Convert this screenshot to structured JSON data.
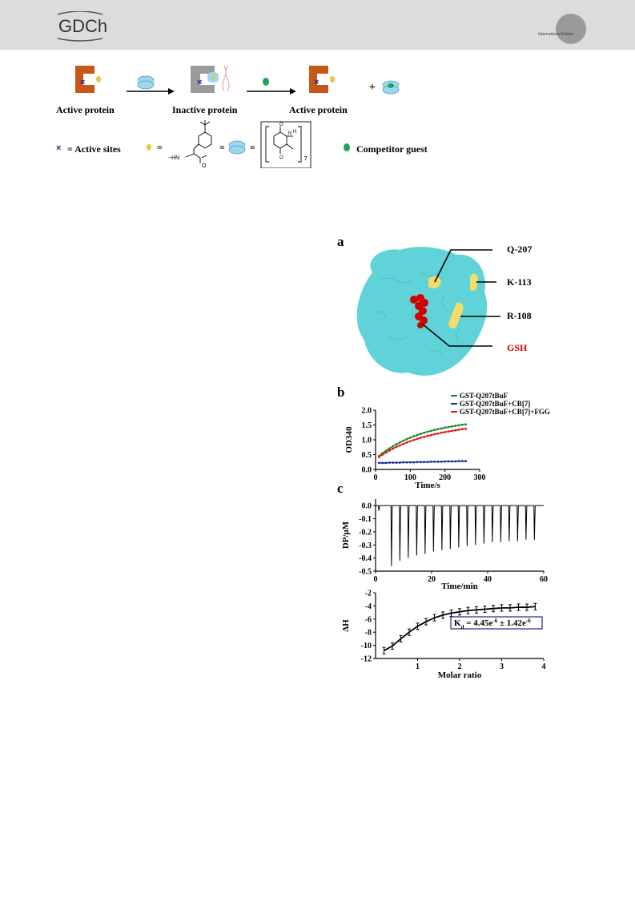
{
  "header": {
    "logo_text": "GDCh",
    "edition_text": "International Edition",
    "band_color": "#dcdcdc"
  },
  "scheme": {
    "labels": {
      "active_left": "Active protein",
      "inactive": "Inactive protein",
      "active_right": "Active protein",
      "plus": "+"
    },
    "legend": {
      "active_sites": "= Active sites",
      "eq1": "=",
      "eq2": "=",
      "eq3": "=",
      "competitor": "Competitor guest",
      "subscript": "7"
    },
    "colors": {
      "protein_active": "#c8571a",
      "protein_inactive": "#9b9b9b",
      "guest": "#e9c548",
      "host": "#9cd7ee",
      "competitor": "#1fa35a",
      "site": "#1a2a8a"
    },
    "icons": [
      "active-protein-icon",
      "cucurbituril-host-icon",
      "competitor-guest-icon",
      "arrow-icon",
      "tbuf-structure-icon",
      "cb7-structure-icon"
    ]
  },
  "panel_a": {
    "letter": "a",
    "labels": {
      "q207": "Q-207",
      "k113": "K-113",
      "r108": "R-108",
      "gsh": "GSH"
    },
    "colors": {
      "surface": "#5fd3d7",
      "residue": "#f3dc6a",
      "gsh": "#d40000",
      "gsh_label": "#d40000"
    }
  },
  "chart_data": [
    {
      "type": "line",
      "panel": "b",
      "xlabel": "Time/s",
      "ylabel": "OD340",
      "xlim": [
        0,
        300
      ],
      "ylim": [
        0,
        2.0
      ],
      "xticks": [
        "0",
        "100",
        "200",
        "300"
      ],
      "yticks": [
        "0.0",
        "0.5",
        "1.0",
        "1.5",
        "2.0"
      ],
      "legend_position": "top",
      "x": [
        10,
        20,
        30,
        40,
        50,
        60,
        70,
        80,
        90,
        100,
        110,
        120,
        130,
        140,
        150,
        160,
        170,
        180,
        190,
        200,
        210,
        220,
        230,
        240,
        250,
        260
      ],
      "series": [
        {
          "name": "GST-Q207tBuF",
          "color": "#1a8a2a",
          "values": [
            0.45,
            0.55,
            0.63,
            0.71,
            0.78,
            0.85,
            0.91,
            0.97,
            1.02,
            1.07,
            1.12,
            1.16,
            1.2,
            1.24,
            1.27,
            1.3,
            1.33,
            1.36,
            1.38,
            1.41,
            1.43,
            1.45,
            1.47,
            1.49,
            1.51,
            1.52
          ]
        },
        {
          "name": "GST-Q207tBuF+CB[7]",
          "color": "#1a2a9a",
          "values": [
            0.22,
            0.22,
            0.22,
            0.23,
            0.23,
            0.23,
            0.23,
            0.24,
            0.24,
            0.24,
            0.24,
            0.25,
            0.25,
            0.25,
            0.25,
            0.26,
            0.26,
            0.26,
            0.26,
            0.27,
            0.27,
            0.27,
            0.27,
            0.28,
            0.28,
            0.28
          ]
        },
        {
          "name": "GST-Q207tBuF+CB[7]+FGG",
          "color": "#e01818",
          "values": [
            0.42,
            0.5,
            0.57,
            0.64,
            0.7,
            0.76,
            0.81,
            0.86,
            0.91,
            0.95,
            0.99,
            1.03,
            1.07,
            1.1,
            1.13,
            1.16,
            1.19,
            1.21,
            1.24,
            1.26,
            1.28,
            1.3,
            1.32,
            1.34,
            1.36,
            1.37
          ]
        }
      ]
    },
    {
      "type": "line",
      "panel": "c-top",
      "xlabel": "Time/min",
      "ylabel": "DP/μM",
      "xlim": [
        0,
        60
      ],
      "ylim": [
        -0.5,
        0.05
      ],
      "xticks": [
        "0",
        "20",
        "40",
        "60"
      ],
      "yticks": [
        "0.0",
        "-0.1",
        "-0.2",
        "-0.3",
        "-0.4",
        "-0.5"
      ],
      "peaks_time": [
        1,
        5.5,
        8.5,
        11.5,
        14.5,
        17.5,
        20.5,
        23.5,
        26.5,
        29.5,
        32.5,
        35.5,
        38.5,
        41.5,
        44.5,
        47.5,
        50.5,
        53.5,
        56.5
      ],
      "peaks_depth": [
        -0.04,
        -0.46,
        -0.42,
        -0.4,
        -0.38,
        -0.37,
        -0.35,
        -0.34,
        -0.33,
        -0.32,
        -0.31,
        -0.3,
        -0.29,
        -0.28,
        -0.28,
        -0.27,
        -0.27,
        -0.26,
        -0.26
      ]
    },
    {
      "type": "scatter",
      "panel": "c-bottom",
      "xlabel": "Molar ratio",
      "ylabel": "ΔH",
      "xlim": [
        0,
        4
      ],
      "ylim": [
        -12,
        -2
      ],
      "xticks": [
        "1",
        "2",
        "3",
        "4"
      ],
      "yticks": [
        "-2",
        "-4",
        "-6",
        "-8",
        "-10",
        "-12"
      ],
      "annotation": "K",
      "annotation_sub": "d",
      "annotation_rest": " = 4.45e",
      "annotation_exp1": "-6",
      "annotation_mid": " ± 1.42e",
      "annotation_exp2": "-6",
      "x": [
        0.2,
        0.4,
        0.6,
        0.8,
        1.0,
        1.2,
        1.4,
        1.6,
        1.8,
        2.0,
        2.2,
        2.4,
        2.6,
        2.8,
        3.0,
        3.2,
        3.4,
        3.6,
        3.8
      ],
      "values": [
        -10.8,
        -10.1,
        -9.0,
        -8.0,
        -7.1,
        -6.4,
        -5.8,
        -5.4,
        -5.1,
        -4.9,
        -4.7,
        -4.6,
        -4.5,
        -4.4,
        -4.3,
        -4.3,
        -4.2,
        -4.2,
        -4.1
      ]
    }
  ]
}
